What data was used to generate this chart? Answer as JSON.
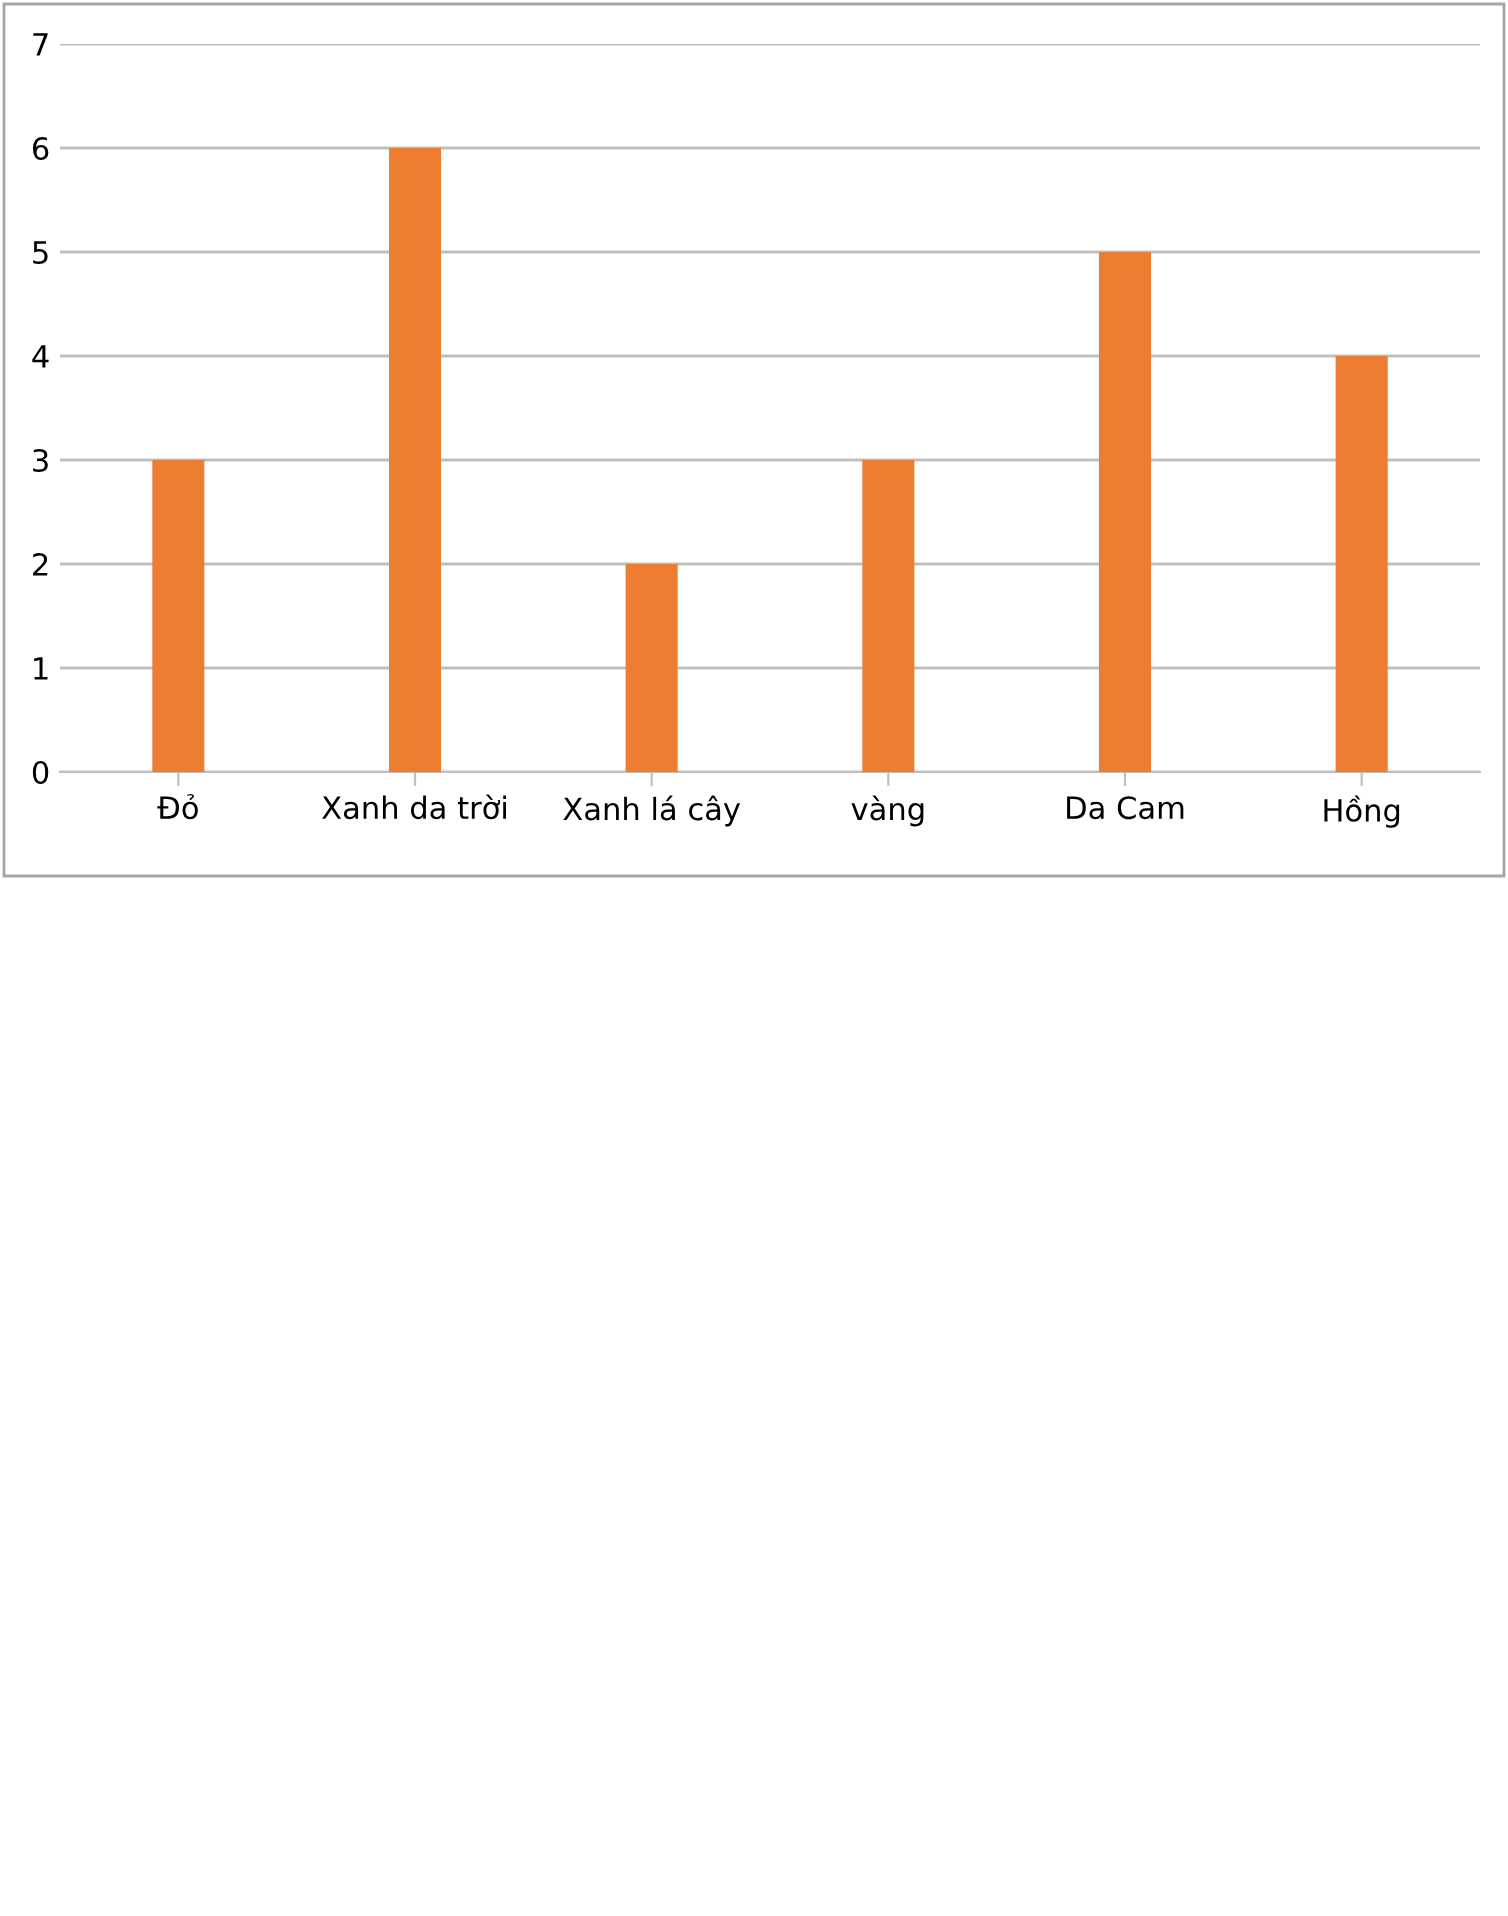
{
  "chart_data": {
    "type": "bar",
    "categories": [
      "Đỏ",
      "Xanh da trời",
      "Xanh lá cây",
      "vàng",
      "Da Cam",
      "Hồng"
    ],
    "values": [
      3,
      6,
      2,
      3,
      5,
      4
    ],
    "color": "#ed7d31",
    "ylim": [
      0,
      7
    ],
    "yticks": [
      0,
      1,
      2,
      3,
      4,
      5,
      6,
      7
    ],
    "grid": "y"
  }
}
